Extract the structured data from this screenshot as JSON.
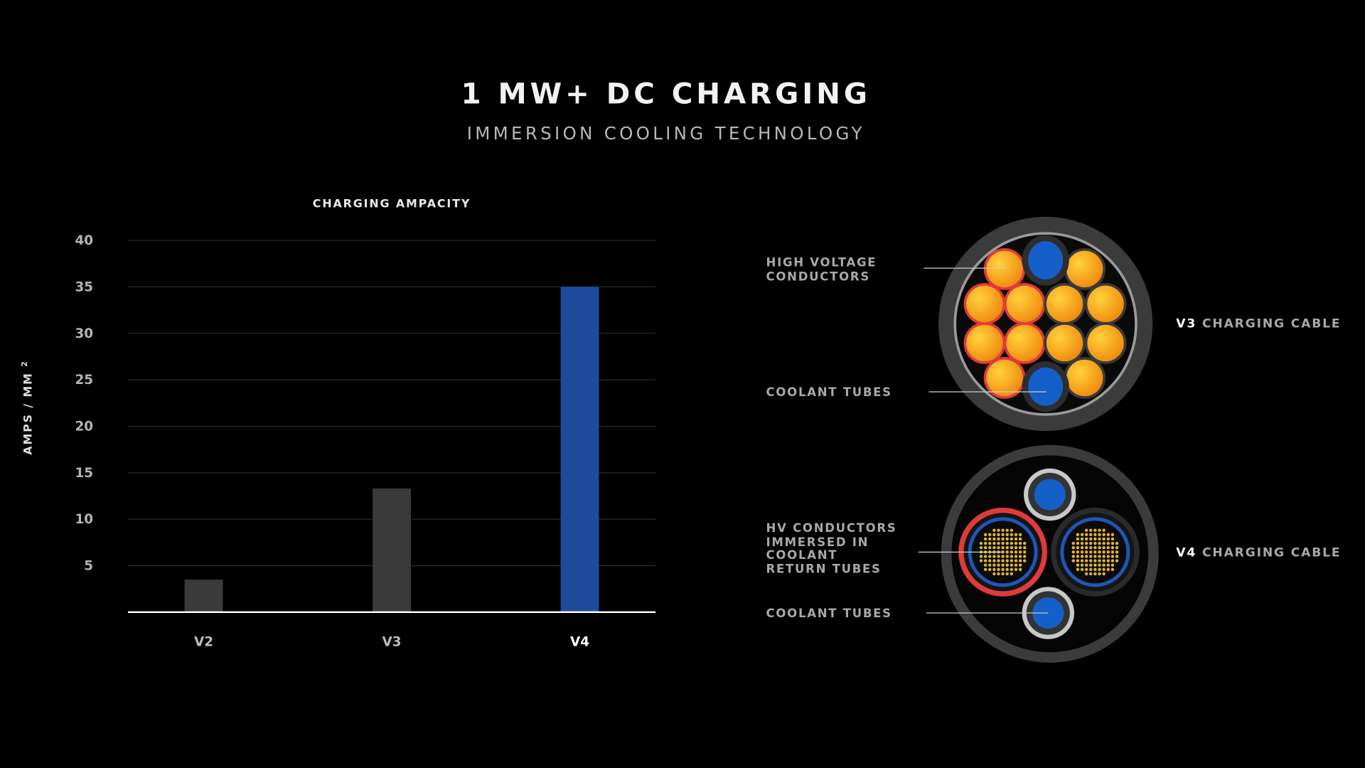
{
  "header": {
    "title": "1 MW+ DC CHARGING",
    "subtitle": "IMMERSION COOLING TECHNOLOGY"
  },
  "chart_data": {
    "type": "bar",
    "title": "CHARGING AMPACITY",
    "ylabel": "AMPS / MM",
    "ylabel_superscript": "2",
    "xlabel": "",
    "categories": [
      "V2",
      "V3",
      "V4"
    ],
    "values": [
      3.5,
      13.3,
      35
    ],
    "colors": [
      "#3a3a3a",
      "#3a3a3a",
      "#1f4a9c"
    ],
    "ylim": [
      0,
      40
    ],
    "yticks": [
      5,
      10,
      15,
      20,
      25,
      30,
      35,
      40
    ],
    "grid": true
  },
  "diagram": {
    "v3": {
      "name_bold": "V3",
      "name_rest": "CHARGING CABLE",
      "labels": [
        "HIGH VOLTAGE CONDUCTORS",
        "COOLANT TUBES"
      ]
    },
    "v4": {
      "name_bold": "V4",
      "name_rest": "CHARGING CABLE",
      "labels": [
        "HV CONDUCTORS IMMERSED IN COOLANT RETURN TUBES",
        "COOLANT TUBES"
      ]
    },
    "colors": {
      "conductor": "#f7a812",
      "coolant": "#1560c8",
      "jacket": "#3b3b3b",
      "hot_ring": "#e03a3a"
    }
  }
}
